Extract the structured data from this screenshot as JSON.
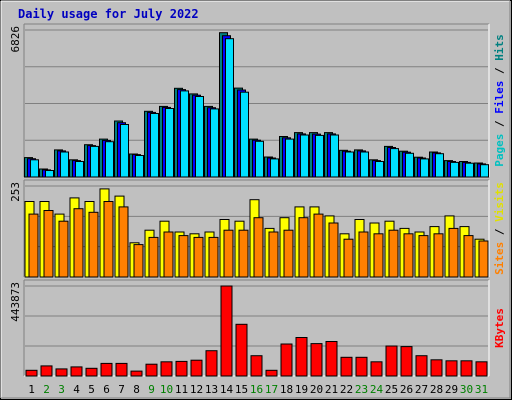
{
  "chart_data": [
    {
      "type": "bar",
      "title": "Daily usage for July 2022",
      "categories": [
        "1",
        "2",
        "3",
        "4",
        "5",
        "6",
        "7",
        "8",
        "9",
        "10",
        "11",
        "12",
        "13",
        "14",
        "15",
        "16",
        "17",
        "18",
        "19",
        "20",
        "21",
        "22",
        "23",
        "24",
        "25",
        "26",
        "27",
        "28",
        "29",
        "30",
        "31"
      ],
      "weekend_days": [
        "2",
        "3",
        "9",
        "10",
        "16",
        "17",
        "23",
        "24",
        "30",
        "31"
      ],
      "ymax_label": "6826",
      "ylim": [
        0,
        6826
      ],
      "right_labels": [
        "Pages",
        "Files",
        "Hits"
      ],
      "series": [
        {
          "name": "Hits",
          "color": "#008080",
          "values": [
            900,
            370,
            1260,
            800,
            1500,
            1760,
            2600,
            1070,
            3050,
            3280,
            4120,
            3860,
            3280,
            6700,
            4130,
            1760,
            930,
            1880,
            2060,
            2060,
            2060,
            1240,
            1260,
            800,
            1420,
            1200,
            920,
            1160,
            760,
            720,
            650
          ]
        },
        {
          "name": "Files",
          "color": "#0000ff",
          "values": [
            850,
            330,
            1210,
            760,
            1460,
            1700,
            2520,
            1040,
            3000,
            3230,
            4060,
            3800,
            3220,
            6560,
            4040,
            1710,
            880,
            1820,
            2000,
            1990,
            2000,
            1200,
            1210,
            760,
            1370,
            1150,
            880,
            1120,
            720,
            680,
            610
          ]
        },
        {
          "name": "Pages",
          "color": "#00e0ff",
          "values": [
            800,
            300,
            1160,
            720,
            1420,
            1640,
            2440,
            1000,
            2950,
            3180,
            4000,
            3740,
            3160,
            6420,
            3940,
            1660,
            840,
            1760,
            1950,
            1930,
            1950,
            1160,
            1160,
            720,
            1320,
            1100,
            840,
            1080,
            680,
            640,
            570
          ]
        }
      ]
    },
    {
      "type": "bar",
      "ymax_label": "253",
      "ylim": [
        0,
        253
      ],
      "right_labels": [
        "Sites",
        "Visits"
      ],
      "series": [
        {
          "name": "Visits",
          "color": "#ffff00",
          "values": [
            210,
            210,
            175,
            220,
            210,
            245,
            225,
            95,
            130,
            155,
            125,
            120,
            125,
            160,
            155,
            215,
            135,
            165,
            195,
            195,
            170,
            120,
            160,
            150,
            155,
            135,
            125,
            140,
            170,
            140,
            105
          ]
        },
        {
          "name": "Sites",
          "color": "#ff8000",
          "values": [
            175,
            185,
            155,
            190,
            180,
            210,
            195,
            90,
            110,
            125,
            115,
            110,
            110,
            130,
            130,
            165,
            125,
            130,
            165,
            175,
            150,
            105,
            125,
            120,
            130,
            120,
            115,
            120,
            135,
            115,
            100
          ]
        }
      ]
    },
    {
      "type": "bar",
      "ymax_label": "443873",
      "ylim": [
        0,
        443873
      ],
      "right_labels": [
        "KBytes"
      ],
      "series": [
        {
          "name": "KBytes",
          "color": "#ff0000",
          "values": [
            28000,
            50000,
            35000,
            45000,
            38000,
            62000,
            62000,
            24000,
            58000,
            70000,
            72000,
            78000,
            125000,
            443873,
            255000,
            100000,
            28000,
            158000,
            190000,
            160000,
            170000,
            92000,
            92000,
            70000,
            148000,
            145000,
            100000,
            80000,
            75000,
            75000,
            70000
          ]
        }
      ]
    }
  ]
}
